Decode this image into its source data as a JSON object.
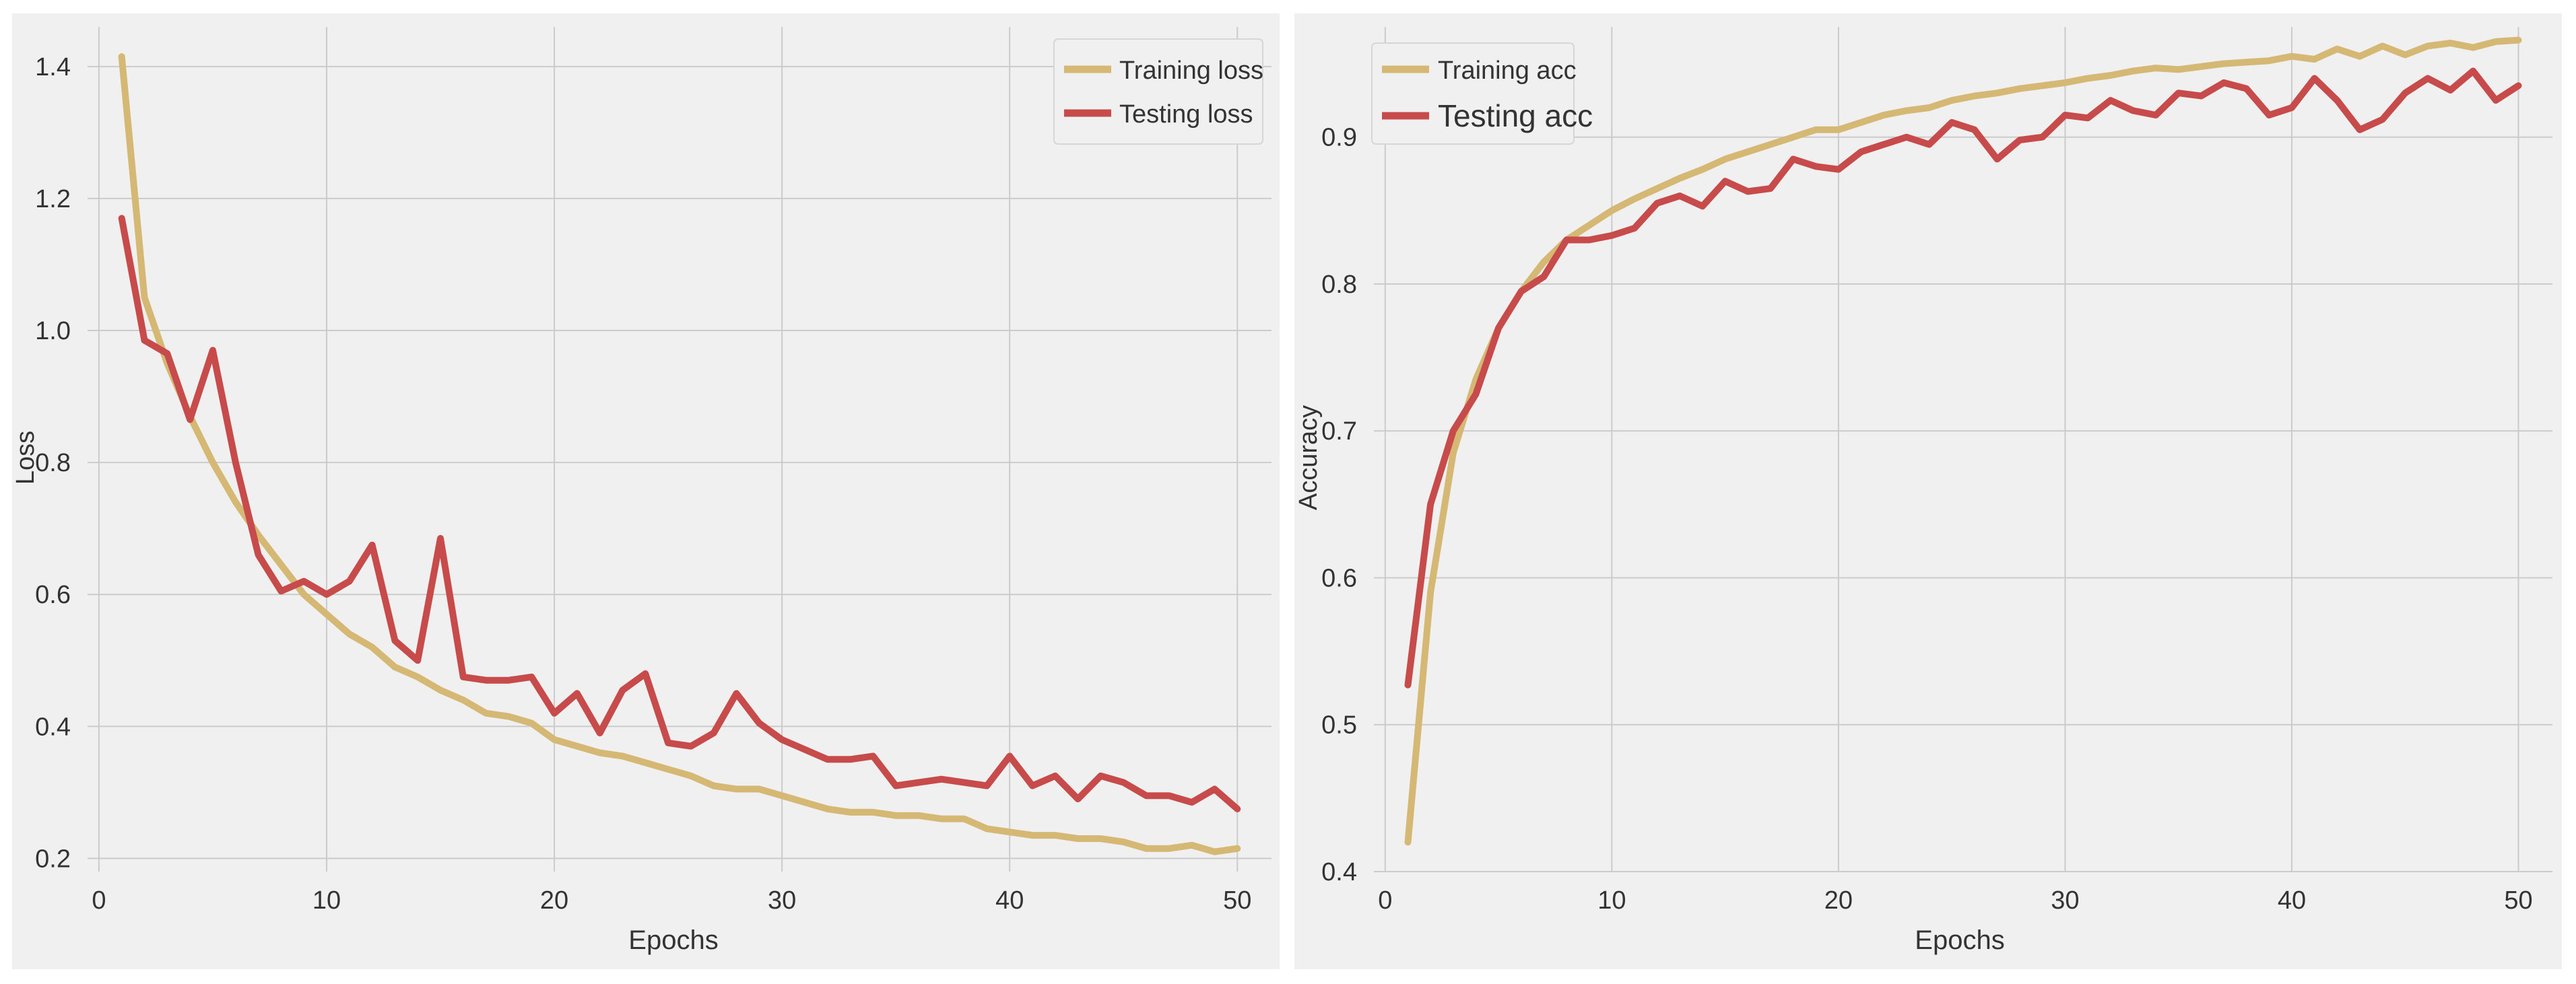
{
  "colors": {
    "panel_bg": "#f0f0f0",
    "grid": "#cbcbcb",
    "train": "#d4b874",
    "test": "#c84b4b",
    "text": "#333333",
    "legend_bg": "#f0f0f0",
    "legend_border": "#d6d6d6"
  },
  "chart_data": [
    {
      "type": "line",
      "title": "",
      "xlabel": "Epochs",
      "ylabel": "Loss",
      "xlim": [
        -0.5,
        51.5
      ],
      "ylim": [
        0.18,
        1.46
      ],
      "xticks": [
        0,
        10,
        20,
        30,
        40,
        50
      ],
      "yticks": [
        0.2,
        0.4,
        0.6,
        0.8,
        1.0,
        1.2,
        1.4
      ],
      "ytick_labels": [
        "0.2",
        "0.4",
        "0.6",
        "0.8",
        "1.0",
        "1.2",
        "1.4"
      ],
      "legend_position": "top-right",
      "grid": true,
      "x": [
        1,
        2,
        3,
        4,
        5,
        6,
        7,
        8,
        9,
        10,
        11,
        12,
        13,
        14,
        15,
        16,
        17,
        18,
        19,
        20,
        21,
        22,
        23,
        24,
        25,
        26,
        27,
        28,
        29,
        30,
        31,
        32,
        33,
        34,
        35,
        36,
        37,
        38,
        39,
        40,
        41,
        42,
        43,
        44,
        45,
        46,
        47,
        48,
        49,
        50
      ],
      "series": [
        {
          "name": "Training loss",
          "color_key": "train",
          "values": [
            1.415,
            1.05,
            0.95,
            0.87,
            0.8,
            0.74,
            0.69,
            0.645,
            0.6,
            0.57,
            0.54,
            0.52,
            0.49,
            0.475,
            0.455,
            0.44,
            0.42,
            0.415,
            0.405,
            0.38,
            0.37,
            0.36,
            0.355,
            0.345,
            0.335,
            0.325,
            0.31,
            0.305,
            0.305,
            0.295,
            0.285,
            0.275,
            0.27,
            0.27,
            0.265,
            0.265,
            0.26,
            0.26,
            0.245,
            0.24,
            0.235,
            0.235,
            0.23,
            0.23,
            0.225,
            0.215,
            0.215,
            0.22,
            0.21,
            0.215
          ]
        },
        {
          "name": "Testing loss",
          "color_key": "test",
          "values": [
            1.17,
            0.985,
            0.965,
            0.865,
            0.97,
            0.8,
            0.66,
            0.605,
            0.62,
            0.6,
            0.62,
            0.675,
            0.53,
            0.5,
            0.685,
            0.475,
            0.47,
            0.47,
            0.475,
            0.42,
            0.45,
            0.39,
            0.455,
            0.48,
            0.375,
            0.37,
            0.39,
            0.45,
            0.405,
            0.38,
            0.365,
            0.35,
            0.35,
            0.355,
            0.31,
            0.315,
            0.32,
            0.315,
            0.31,
            0.355,
            0.31,
            0.325,
            0.29,
            0.325,
            0.315,
            0.295,
            0.295,
            0.285,
            0.305,
            0.275
          ]
        }
      ]
    },
    {
      "type": "line",
      "title": "",
      "xlabel": "Epochs",
      "ylabel": "Accuracy",
      "xlim": [
        -0.5,
        51.5
      ],
      "ylim": [
        0.4,
        0.975
      ],
      "xticks": [
        0,
        10,
        20,
        30,
        40,
        50
      ],
      "yticks": [
        0.4,
        0.5,
        0.6,
        0.7,
        0.8,
        0.9
      ],
      "ytick_labels": [
        "0.4",
        "0.5",
        "0.6",
        "0.7",
        "0.8",
        "0.9"
      ],
      "legend_position": "top-left",
      "grid": true,
      "x": [
        1,
        2,
        3,
        4,
        5,
        6,
        7,
        8,
        9,
        10,
        11,
        12,
        13,
        14,
        15,
        16,
        17,
        18,
        19,
        20,
        21,
        22,
        23,
        24,
        25,
        26,
        27,
        28,
        29,
        30,
        31,
        32,
        33,
        34,
        35,
        36,
        37,
        38,
        39,
        40,
        41,
        42,
        43,
        44,
        45,
        46,
        47,
        48,
        49,
        50
      ],
      "series": [
        {
          "name": "Training acc",
          "color_key": "train",
          "values": [
            0.42,
            0.59,
            0.685,
            0.735,
            0.77,
            0.795,
            0.815,
            0.83,
            0.84,
            0.85,
            0.858,
            0.865,
            0.872,
            0.878,
            0.885,
            0.89,
            0.895,
            0.9,
            0.905,
            0.905,
            0.91,
            0.915,
            0.918,
            0.92,
            0.925,
            0.928,
            0.93,
            0.933,
            0.935,
            0.937,
            0.94,
            0.942,
            0.945,
            0.947,
            0.946,
            0.948,
            0.95,
            0.951,
            0.952,
            0.955,
            0.953,
            0.96,
            0.955,
            0.962,
            0.956,
            0.962,
            0.964,
            0.961,
            0.965,
            0.966
          ]
        },
        {
          "name": "Testing acc",
          "color_key": "test",
          "values": [
            0.527,
            0.65,
            0.7,
            0.725,
            0.77,
            0.795,
            0.805,
            0.83,
            0.83,
            0.833,
            0.838,
            0.855,
            0.86,
            0.853,
            0.87,
            0.863,
            0.865,
            0.885,
            0.88,
            0.878,
            0.89,
            0.895,
            0.9,
            0.895,
            0.91,
            0.905,
            0.885,
            0.898,
            0.9,
            0.915,
            0.913,
            0.925,
            0.918,
            0.915,
            0.93,
            0.928,
            0.937,
            0.933,
            0.915,
            0.92,
            0.94,
            0.925,
            0.905,
            0.912,
            0.93,
            0.94,
            0.932,
            0.945,
            0.925,
            0.935
          ]
        }
      ]
    }
  ]
}
